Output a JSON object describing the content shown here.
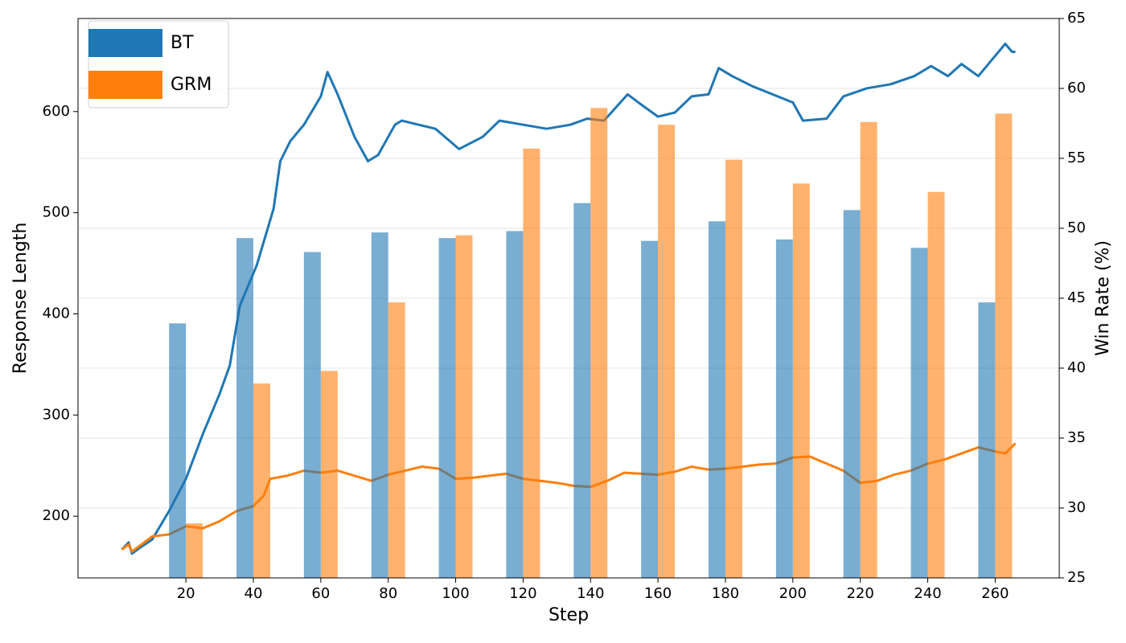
{
  "chart_data": {
    "type": "bar_line",
    "x_label": "Step",
    "y_label": "Response Length",
    "y2_label": "Win Rate (%)",
    "xlim": [
      -12,
      279
    ],
    "xticks": [
      20,
      40,
      60,
      80,
      100,
      120,
      140,
      160,
      180,
      200,
      220,
      240,
      260
    ],
    "ylim": [
      139,
      692
    ],
    "yticks": [
      200,
      300,
      400,
      500,
      600
    ],
    "y2lim": [
      25,
      65
    ],
    "y2ticks": [
      25,
      30,
      35,
      40,
      45,
      50,
      55,
      60,
      65
    ],
    "grid": true,
    "legend": "upper left",
    "series": [
      {
        "name": "BT",
        "color": "#1f77b4",
        "bar_x": [
          20,
          40,
          60,
          80,
          100,
          120,
          140,
          160,
          180,
          200,
          220,
          240,
          260
        ],
        "bar_values": [
          43.2,
          49.3,
          48.3,
          49.7,
          49.3,
          49.8,
          51.8,
          49.1,
          50.5,
          49.2,
          51.3,
          48.6,
          44.7
        ],
        "line_x": [
          1,
          3,
          4,
          6,
          10,
          15,
          20,
          25,
          30,
          33,
          36,
          41,
          46,
          48,
          51,
          55,
          60,
          62,
          65,
          70,
          74,
          77,
          82,
          84,
          94,
          101,
          108,
          113,
          120,
          127,
          134,
          139,
          144,
          151,
          155,
          160,
          165,
          170,
          175,
          178,
          182,
          188,
          194,
          200,
          203,
          210,
          215,
          222,
          229,
          236,
          241,
          246,
          250,
          255,
          260,
          263,
          265,
          266
        ],
        "line_values": [
          167,
          174,
          163,
          168,
          177,
          205,
          237,
          281,
          321,
          349,
          408,
          448,
          504,
          551,
          571,
          587,
          615,
          639,
          617,
          575,
          551,
          557,
          587,
          591,
          583,
          563,
          575,
          591,
          587,
          583,
          587,
          593,
          591,
          617,
          607,
          595,
          599,
          615,
          617,
          643,
          635,
          625,
          617,
          609,
          591,
          593,
          615,
          623,
          627,
          635,
          645,
          635,
          647,
          635,
          655,
          667,
          659,
          659
        ]
      },
      {
        "name": "GRM",
        "color": "#ff7f0e",
        "bar_x": [
          20,
          40,
          60,
          80,
          100,
          120,
          140,
          160,
          180,
          200,
          220,
          240,
          260
        ],
        "bar_values": [
          28.9,
          38.9,
          39.8,
          44.7,
          49.5,
          55.7,
          58.6,
          57.4,
          54.9,
          53.2,
          57.6,
          52.6,
          58.2
        ],
        "line_x": [
          1,
          3,
          4,
          10,
          15,
          20,
          25,
          30,
          35,
          40,
          43,
          45,
          50,
          55,
          60,
          65,
          70,
          75,
          80,
          85,
          90,
          95,
          100,
          105,
          110,
          115,
          120,
          125,
          130,
          135,
          140,
          145,
          150,
          155,
          160,
          165,
          170,
          175,
          180,
          185,
          190,
          195,
          200,
          205,
          210,
          215,
          220,
          225,
          230,
          235,
          240,
          245,
          250,
          255,
          260,
          263,
          266
        ],
        "line_values": [
          167,
          172,
          165,
          180,
          182,
          190,
          188,
          195,
          205,
          210,
          220,
          237,
          240,
          245,
          243,
          245,
          240,
          235,
          241,
          245,
          249,
          247,
          237,
          238,
          240,
          242,
          237,
          235,
          233,
          230,
          229,
          235,
          243,
          242,
          241,
          244,
          249,
          246,
          247,
          249,
          251,
          252,
          258,
          259,
          252,
          245,
          233,
          235,
          241,
          245,
          252,
          256,
          262,
          268,
          264,
          262,
          272
        ]
      }
    ]
  }
}
